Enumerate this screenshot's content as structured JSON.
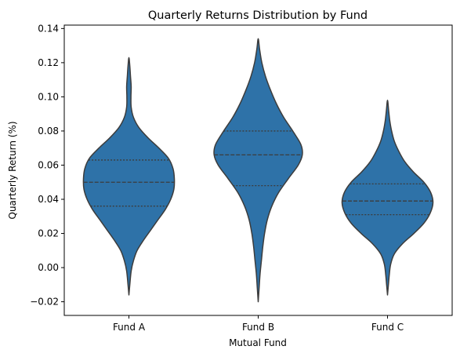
{
  "chart_data": {
    "type": "violin",
    "title": "Quarterly Returns Distribution by Fund",
    "xlabel": "Mutual Fund",
    "ylabel": "Quarterly Return (%)",
    "ylim": [
      -0.028,
      0.142
    ],
    "yticks": [
      -0.02,
      0.0,
      0.02,
      0.04,
      0.06,
      0.08,
      0.1,
      0.12,
      0.14
    ],
    "ytick_labels": [
      "−0.02",
      "0.00",
      "0.02",
      "0.04",
      "0.06",
      "0.08",
      "0.10",
      "0.12",
      "0.14"
    ],
    "categories": [
      "Fund A",
      "Fund B",
      "Fund C"
    ],
    "fill_color": "#2e72a8",
    "edge_color": "#3c3c3c",
    "grid": false,
    "violins": [
      {
        "name": "Fund A",
        "q1": 0.036,
        "median": 0.05,
        "q3": 0.063,
        "profile": [
          [
            -0.016,
            0.0
          ],
          [
            -0.01,
            0.02
          ],
          [
            -0.002,
            0.05
          ],
          [
            0.004,
            0.1
          ],
          [
            0.01,
            0.18
          ],
          [
            0.016,
            0.32
          ],
          [
            0.022,
            0.48
          ],
          [
            0.028,
            0.64
          ],
          [
            0.034,
            0.8
          ],
          [
            0.04,
            0.92
          ],
          [
            0.046,
            0.99
          ],
          [
            0.052,
            1.0
          ],
          [
            0.058,
            0.97
          ],
          [
            0.064,
            0.87
          ],
          [
            0.07,
            0.66
          ],
          [
            0.076,
            0.42
          ],
          [
            0.082,
            0.22
          ],
          [
            0.088,
            0.1
          ],
          [
            0.094,
            0.05
          ],
          [
            0.1,
            0.045
          ],
          [
            0.106,
            0.05
          ],
          [
            0.112,
            0.035
          ],
          [
            0.118,
            0.02
          ],
          [
            0.123,
            0.0
          ]
        ]
      },
      {
        "name": "Fund B",
        "q1": 0.048,
        "median": 0.066,
        "q3": 0.08,
        "profile": [
          [
            -0.02,
            0.0
          ],
          [
            -0.012,
            0.02
          ],
          [
            -0.004,
            0.04
          ],
          [
            0.004,
            0.07
          ],
          [
            0.012,
            0.1
          ],
          [
            0.02,
            0.14
          ],
          [
            0.028,
            0.2
          ],
          [
            0.036,
            0.3
          ],
          [
            0.044,
            0.45
          ],
          [
            0.052,
            0.66
          ],
          [
            0.06,
            0.88
          ],
          [
            0.066,
            0.97
          ],
          [
            0.072,
            0.94
          ],
          [
            0.08,
            0.76
          ],
          [
            0.088,
            0.56
          ],
          [
            0.096,
            0.4
          ],
          [
            0.104,
            0.27
          ],
          [
            0.112,
            0.16
          ],
          [
            0.12,
            0.08
          ],
          [
            0.128,
            0.03
          ],
          [
            0.134,
            0.0
          ]
        ]
      },
      {
        "name": "Fund C",
        "q1": 0.031,
        "median": 0.039,
        "q3": 0.049,
        "profile": [
          [
            -0.016,
            0.0
          ],
          [
            -0.01,
            0.02
          ],
          [
            -0.004,
            0.04
          ],
          [
            0.002,
            0.07
          ],
          [
            0.008,
            0.15
          ],
          [
            0.014,
            0.33
          ],
          [
            0.02,
            0.58
          ],
          [
            0.026,
            0.8
          ],
          [
            0.032,
            0.94
          ],
          [
            0.038,
            1.0
          ],
          [
            0.044,
            0.95
          ],
          [
            0.05,
            0.8
          ],
          [
            0.056,
            0.57
          ],
          [
            0.062,
            0.38
          ],
          [
            0.068,
            0.25
          ],
          [
            0.074,
            0.15
          ],
          [
            0.08,
            0.09
          ],
          [
            0.086,
            0.05
          ],
          [
            0.092,
            0.025
          ],
          [
            0.098,
            0.0
          ]
        ]
      }
    ]
  }
}
